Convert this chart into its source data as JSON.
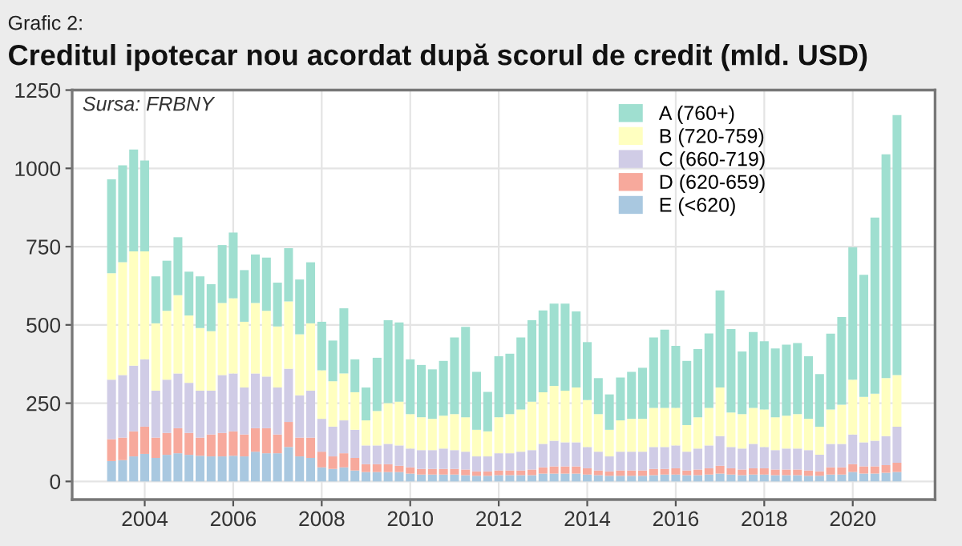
{
  "chart_data": {
    "type": "bar",
    "stacked": true,
    "subtitle": "Grafic 2:",
    "title": "Creditul ipotecar nou acordat după scorul de credit (mld. USD)",
    "annotations": [
      "Sursa: FRBNY"
    ],
    "x": [
      2003.25,
      2003.5,
      2003.75,
      2004.0,
      2004.25,
      2004.5,
      2004.75,
      2005.0,
      2005.25,
      2005.5,
      2005.75,
      2006.0,
      2006.25,
      2006.5,
      2006.75,
      2007.0,
      2007.25,
      2007.5,
      2007.75,
      2008.0,
      2008.25,
      2008.5,
      2008.75,
      2009.0,
      2009.25,
      2009.5,
      2009.75,
      2010.0,
      2010.25,
      2010.5,
      2010.75,
      2011.0,
      2011.25,
      2011.5,
      2011.75,
      2012.0,
      2012.25,
      2012.5,
      2012.75,
      2013.0,
      2013.25,
      2013.5,
      2013.75,
      2014.0,
      2014.25,
      2014.5,
      2014.75,
      2015.0,
      2015.25,
      2015.5,
      2015.75,
      2016.0,
      2016.25,
      2016.5,
      2016.75,
      2017.0,
      2017.25,
      2017.5,
      2017.75,
      2018.0,
      2018.25,
      2018.5,
      2018.75,
      2019.0,
      2019.25,
      2019.5,
      2019.75,
      2020.0,
      2020.25,
      2020.5,
      2020.75,
      2021.0
    ],
    "series": [
      {
        "name": "E (<620)",
        "color": "#a9c8e0",
        "values": [
          65,
          68,
          80,
          88,
          75,
          85,
          90,
          85,
          82,
          80,
          80,
          82,
          80,
          95,
          90,
          90,
          110,
          80,
          75,
          45,
          40,
          45,
          35,
          30,
          30,
          30,
          30,
          25,
          22,
          22,
          22,
          22,
          20,
          18,
          18,
          20,
          20,
          20,
          20,
          25,
          25,
          25,
          25,
          22,
          20,
          18,
          18,
          18,
          18,
          20,
          22,
          22,
          20,
          20,
          22,
          25,
          22,
          20,
          22,
          22,
          20,
          20,
          20,
          18,
          18,
          22,
          22,
          30,
          25,
          25,
          28,
          30
        ]
      },
      {
        "name": "D (620-659)",
        "color": "#f7a99c",
        "values": [
          70,
          72,
          80,
          87,
          65,
          70,
          80,
          70,
          58,
          70,
          75,
          78,
          70,
          75,
          80,
          60,
          80,
          60,
          65,
          50,
          40,
          45,
          40,
          25,
          25,
          25,
          20,
          20,
          18,
          18,
          18,
          18,
          18,
          14,
          14,
          15,
          15,
          15,
          18,
          20,
          23,
          23,
          23,
          20,
          15,
          14,
          17,
          17,
          17,
          20,
          18,
          20,
          15,
          18,
          20,
          25,
          20,
          18,
          20,
          20,
          18,
          18,
          18,
          17,
          14,
          23,
          23,
          25,
          23,
          23,
          24,
          30
        ]
      },
      {
        "name": "C (660-719)",
        "color": "#d0cce6",
        "values": [
          190,
          200,
          210,
          215,
          150,
          170,
          175,
          160,
          150,
          140,
          185,
          185,
          150,
          175,
          165,
          150,
          170,
          135,
          150,
          105,
          95,
          105,
          90,
          60,
          60,
          65,
          65,
          60,
          60,
          60,
          65,
          60,
          57,
          48,
          48,
          55,
          55,
          60,
          62,
          75,
          82,
          77,
          77,
          68,
          60,
          48,
          60,
          60,
          60,
          70,
          70,
          73,
          60,
          67,
          73,
          95,
          68,
          67,
          78,
          68,
          62,
          67,
          67,
          65,
          53,
          75,
          75,
          95,
          77,
          82,
          93,
          115
        ]
      },
      {
        "name": "B (720-759)",
        "color": "#ffffc0",
        "values": [
          340,
          360,
          365,
          345,
          215,
          220,
          250,
          215,
          200,
          190,
          230,
          240,
          210,
          225,
          210,
          195,
          215,
          195,
          215,
          155,
          145,
          150,
          120,
          80,
          110,
          130,
          140,
          110,
          105,
          100,
          105,
          115,
          110,
          85,
          80,
          115,
          125,
          135,
          155,
          165,
          175,
          165,
          175,
          150,
          120,
          85,
          100,
          105,
          105,
          125,
          125,
          120,
          85,
          100,
          120,
          155,
          110,
          110,
          115,
          120,
          105,
          105,
          110,
          100,
          90,
          110,
          125,
          175,
          145,
          150,
          185,
          165
        ]
      },
      {
        "name": "A (760+)",
        "color": "#9fdfd0",
        "values": [
          300,
          310,
          325,
          290,
          150,
          160,
          185,
          140,
          165,
          150,
          185,
          210,
          165,
          155,
          170,
          140,
          170,
          175,
          195,
          155,
          130,
          208,
          105,
          105,
          170,
          265,
          253,
          175,
          167,
          158,
          175,
          245,
          289,
          185,
          126,
          195,
          193,
          230,
          260,
          261,
          263,
          278,
          243,
          185,
          115,
          113,
          137,
          150,
          163,
          225,
          250,
          198,
          205,
          218,
          238,
          310,
          267,
          200,
          242,
          218,
          220,
          227,
          227,
          200,
          168,
          242,
          280,
          423,
          390,
          563,
          715,
          830
        ]
      }
    ],
    "xlim": [
      2002.36,
      2021.86
    ],
    "xticks": [
      2004,
      2006,
      2008,
      2010,
      2012,
      2014,
      2016,
      2018,
      2020
    ],
    "ylim": [
      -58,
      1250
    ],
    "yticks": [
      0,
      250,
      500,
      750,
      1000,
      1250
    ],
    "grid": true,
    "legend": "top right"
  }
}
